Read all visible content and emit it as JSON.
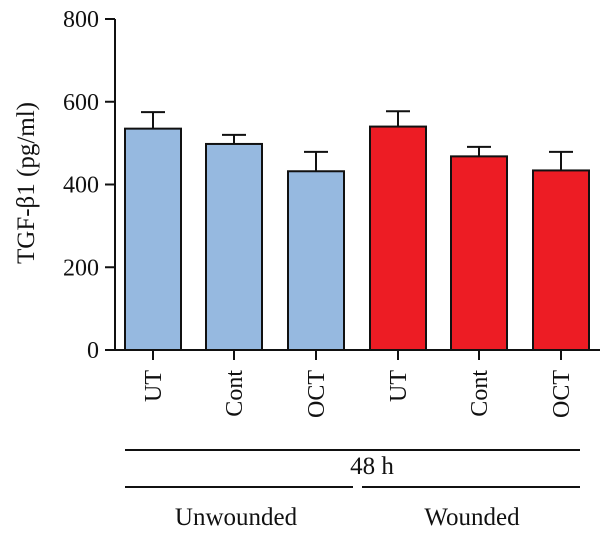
{
  "chart_data": {
    "type": "bar",
    "ylabel": "TGF-β1 (pg/ml)",
    "ylim": [
      0,
      800
    ],
    "yticks": [
      0,
      200,
      400,
      600,
      800
    ],
    "categories": [
      "UT",
      "Cont",
      "OCT",
      "UT",
      "Cont",
      "OCT"
    ],
    "values": [
      535,
      498,
      432,
      540,
      468,
      434
    ],
    "errors": [
      40,
      22,
      47,
      37,
      23,
      45
    ],
    "bar_colors": [
      "#96b9e0",
      "#96b9e0",
      "#96b9e0",
      "#ed1c24",
      "#ed1c24",
      "#ed1c24"
    ],
    "time_label": "48 h",
    "groups": [
      {
        "label": "Unwounded",
        "categories": [
          0,
          1,
          2
        ]
      },
      {
        "label": "Wounded",
        "categories": [
          3,
          4,
          5
        ]
      }
    ]
  }
}
